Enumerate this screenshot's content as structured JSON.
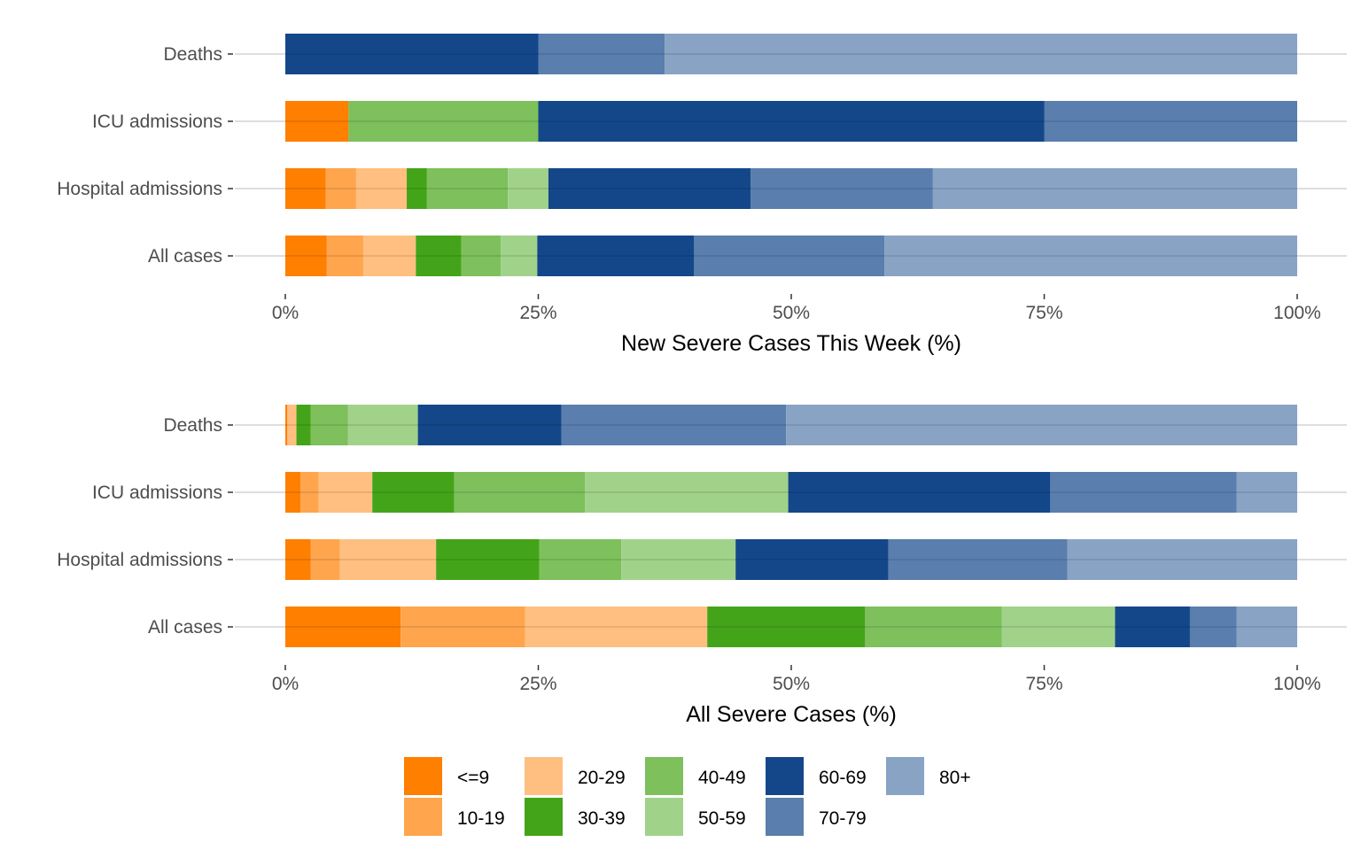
{
  "chart_data": [
    {
      "type": "bar",
      "orientation": "horizontal",
      "stacked": "percent",
      "title": "",
      "xlabel": "New Severe Cases This Week (%)",
      "ylabel": "",
      "xlim": [
        0,
        100
      ],
      "xticks": [
        "0%",
        "25%",
        "50%",
        "75%",
        "100%"
      ],
      "grid": true,
      "categories": [
        "Deaths",
        "ICU admissions",
        "Hospital admissions",
        "All cases"
      ],
      "series": [
        {
          "name": "<=9",
          "values": [
            0,
            6.25,
            4.0,
            4.1
          ]
        },
        {
          "name": "10-19",
          "values": [
            0,
            0,
            3.0,
            3.6
          ]
        },
        {
          "name": "20-29",
          "values": [
            0,
            0,
            5.0,
            5.2
          ]
        },
        {
          "name": "30-39",
          "values": [
            0,
            0,
            2.0,
            4.5
          ]
        },
        {
          "name": "40-49",
          "values": [
            0,
            18.75,
            8.0,
            3.9
          ]
        },
        {
          "name": "50-59",
          "values": [
            0,
            0,
            4.0,
            3.6
          ]
        },
        {
          "name": "60-69",
          "values": [
            25.0,
            50.0,
            20.0,
            15.5
          ]
        },
        {
          "name": "70-79",
          "values": [
            12.5,
            25.0,
            18.0,
            18.8
          ]
        },
        {
          "name": "80+",
          "values": [
            62.5,
            0,
            36.0,
            40.8
          ]
        }
      ]
    },
    {
      "type": "bar",
      "orientation": "horizontal",
      "stacked": "percent",
      "title": "",
      "xlabel": "All Severe Cases (%)",
      "ylabel": "",
      "xlim": [
        0,
        100
      ],
      "xticks": [
        "0%",
        "25%",
        "50%",
        "75%",
        "100%"
      ],
      "grid": true,
      "categories": [
        "Deaths",
        "ICU admissions",
        "Hospital admissions",
        "All cases"
      ],
      "series": [
        {
          "name": "<=9",
          "values": [
            0.2,
            1.5,
            2.5,
            11.4
          ]
        },
        {
          "name": "10-19",
          "values": [
            0.0,
            1.8,
            2.9,
            12.3
          ]
        },
        {
          "name": "20-29",
          "values": [
            0.9,
            5.3,
            9.5,
            18.0
          ]
        },
        {
          "name": "30-39",
          "values": [
            1.4,
            8.1,
            10.2,
            15.6
          ]
        },
        {
          "name": "40-49",
          "values": [
            3.7,
            12.9,
            8.1,
            13.5
          ]
        },
        {
          "name": "50-59",
          "values": [
            6.9,
            20.1,
            11.3,
            11.2
          ]
        },
        {
          "name": "60-69",
          "values": [
            14.2,
            25.9,
            15.1,
            7.4
          ]
        },
        {
          "name": "70-79",
          "values": [
            22.2,
            18.4,
            17.7,
            4.6
          ]
        },
        {
          "name": "80+",
          "values": [
            50.5,
            6.0,
            22.7,
            6.0
          ]
        }
      ]
    }
  ],
  "legend": {
    "placement": "bottom",
    "items": [
      {
        "label": "<=9",
        "color": "#FF7F00"
      },
      {
        "label": "10-19",
        "color": "#FFA54D"
      },
      {
        "label": "20-29",
        "color": "#FFBF80"
      },
      {
        "label": "30-39",
        "color": "#44A419"
      },
      {
        "label": "40-49",
        "color": "#7DC05C"
      },
      {
        "label": "50-59",
        "color": "#A1D28A"
      },
      {
        "label": "60-69",
        "color": "#14478A"
      },
      {
        "label": "70-79",
        "color": "#5A7EAD"
      },
      {
        "label": "80+",
        "color": "#89A3C4"
      }
    ]
  }
}
